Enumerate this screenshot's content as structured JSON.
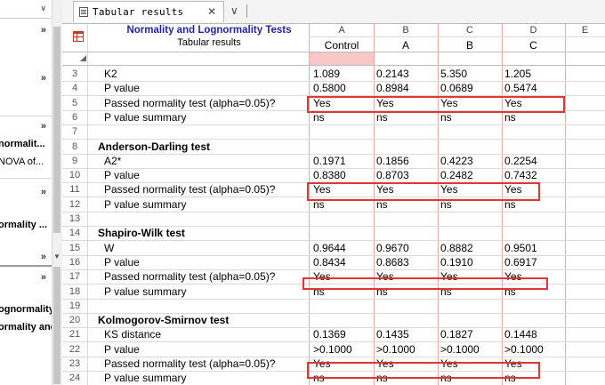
{
  "navigator": {
    "truncated_items": [
      "normalit...",
      "NOVA of...",
      "ormality ...",
      "ognormality T",
      "ormality and L"
    ]
  },
  "tab": {
    "label": "Tabular results"
  },
  "sheet": {
    "title": "Normality and Lognormality Tests",
    "subtitle": "Tabular results",
    "columns": [
      {
        "letter": "A",
        "title": "Control"
      },
      {
        "letter": "B",
        "title": "A"
      },
      {
        "letter": "C",
        "title": "B"
      },
      {
        "letter": "D",
        "title": "C"
      },
      {
        "letter": "E",
        "title": ""
      }
    ],
    "rows": [
      {
        "n": "3",
        "label": "K2",
        "values": [
          "1.089",
          "0.2143",
          "5.350",
          "1.205"
        ]
      },
      {
        "n": "4",
        "label": "P value",
        "values": [
          "0.5800",
          "0.8984",
          "0.0689",
          "0.5474"
        ]
      },
      {
        "n": "5",
        "label": "Passed normality test (alpha=0.05)?",
        "values": [
          "Yes",
          "Yes",
          "Yes",
          "Yes"
        ]
      },
      {
        "n": "6",
        "label": "P value summary",
        "values": [
          "ns",
          "ns",
          "ns",
          "ns"
        ]
      },
      {
        "n": "7",
        "label": "",
        "values": [
          "",
          "",
          "",
          ""
        ]
      },
      {
        "n": "8",
        "label": "Anderson-Darling test",
        "heading": true,
        "values": [
          "",
          "",
          "",
          ""
        ]
      },
      {
        "n": "9",
        "label": "A2*",
        "values": [
          "0.1971",
          "0.1856",
          "0.4223",
          "0.2254"
        ]
      },
      {
        "n": "10",
        "label": "P value",
        "values": [
          "0.8380",
          "0.8703",
          "0.2482",
          "0.7432"
        ]
      },
      {
        "n": "11",
        "label": "Passed normality test (alpha=0.05)?",
        "values": [
          "Yes",
          "Yes",
          "Yes",
          "Yes"
        ]
      },
      {
        "n": "12",
        "label": "P value summary",
        "values": [
          "ns",
          "ns",
          "ns",
          "ns"
        ]
      },
      {
        "n": "13",
        "label": "",
        "values": [
          "",
          "",
          "",
          ""
        ]
      },
      {
        "n": "14",
        "label": "Shapiro-Wilk test",
        "heading": true,
        "values": [
          "",
          "",
          "",
          ""
        ]
      },
      {
        "n": "15",
        "label": "W",
        "values": [
          "0.9644",
          "0.9670",
          "0.8882",
          "0.9501"
        ]
      },
      {
        "n": "16",
        "label": "P value",
        "values": [
          "0.8434",
          "0.8683",
          "0.1910",
          "0.6917"
        ]
      },
      {
        "n": "17",
        "label": "Passed normality test (alpha=0.05)?",
        "values": [
          "Yes",
          "Yes",
          "Yes",
          "Yes"
        ]
      },
      {
        "n": "18",
        "label": "P value summary",
        "values": [
          "ns",
          "ns",
          "ns",
          "ns"
        ]
      },
      {
        "n": "19",
        "label": "",
        "values": [
          "",
          "",
          "",
          ""
        ]
      },
      {
        "n": "20",
        "label": "Kolmogorov-Smirnov test",
        "heading": true,
        "values": [
          "",
          "",
          "",
          ""
        ]
      },
      {
        "n": "21",
        "label": "KS distance",
        "values": [
          "0.1369",
          "0.1435",
          "0.1827",
          "0.1448"
        ]
      },
      {
        "n": "22",
        "label": "P value",
        "values": [
          ">0.1000",
          ">0.1000",
          ">0.1000",
          ">0.1000"
        ]
      },
      {
        "n": "23",
        "label": "Passed normality test (alpha=0.05)?",
        "values": [
          "Yes",
          "Yes",
          "Yes",
          "Yes"
        ]
      },
      {
        "n": "24",
        "label": "P value summary",
        "values": [
          "ns",
          "ns",
          "ns",
          "ns"
        ]
      }
    ]
  },
  "colors": {
    "title": "#1f1fb4",
    "highlight": "#e23636",
    "selected_cell": "#f7c7c7"
  }
}
